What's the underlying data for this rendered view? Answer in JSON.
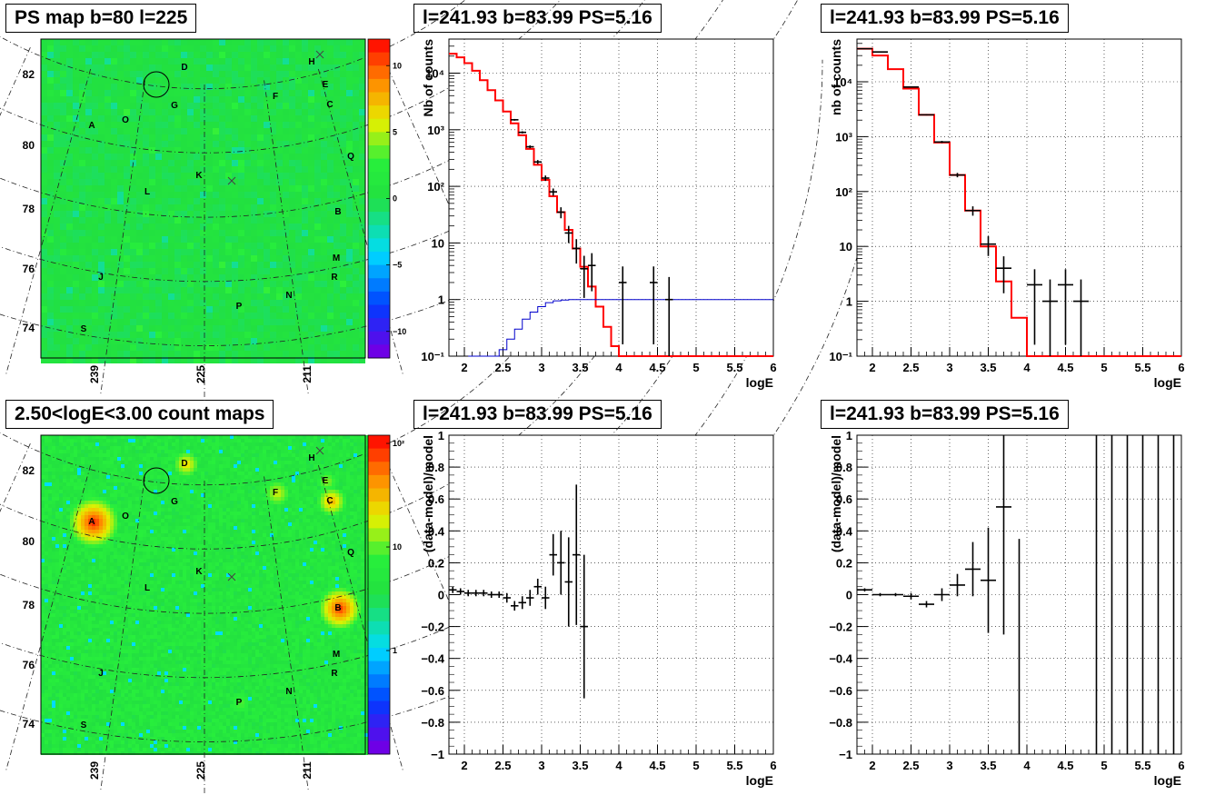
{
  "chart_data": [
    {
      "type": "heatmap",
      "title": "PS map b=80 l=225",
      "x_tick_labels": [
        "239",
        "225",
        "211"
      ],
      "y_tick_labels": [
        "82",
        "80",
        "78",
        "76",
        "74"
      ],
      "colorbar_ticks": [
        "10",
        "5",
        "0",
        "−5",
        "−10"
      ],
      "colorbar_range": [
        -12,
        12
      ],
      "sources": [
        "A",
        "B",
        "C",
        "D",
        "E",
        "F",
        "G",
        "H",
        "J",
        "K",
        "L",
        "M",
        "N",
        "O",
        "P",
        "Q",
        "R",
        "S"
      ],
      "colors": {
        "background": "#22e040",
        "high": "#ff2200",
        "low": "#6a00e0"
      }
    },
    {
      "type": "line",
      "title": "l=241.93 b=83.99 PS=5.16",
      "xlabel": "logE",
      "ylabel": "Nb of counts",
      "xlim": [
        1.8,
        6
      ],
      "ylim": [
        0.1,
        40000
      ],
      "log_y": true,
      "grid": true,
      "x_tick_labels": [
        "2",
        "2.5",
        "3",
        "3.5",
        "4",
        "4.5",
        "5",
        "5.5",
        "6"
      ],
      "y_tick_labels": [
        "10⁻¹",
        "1",
        "10",
        "10²",
        "10³",
        "10⁴"
      ],
      "series": [
        {
          "color": "#ff0000",
          "style": "step",
          "x": [
            1.8,
            1.9,
            2.0,
            2.1,
            2.2,
            2.3,
            2.4,
            2.5,
            2.6,
            2.7,
            2.8,
            2.9,
            3.0,
            3.1,
            3.2,
            3.3,
            3.4,
            3.5,
            3.6,
            3.7,
            3.8,
            3.9,
            4.0,
            4.1,
            4.2,
            4.3,
            4.4,
            4.5,
            4.6,
            4.7,
            4.8,
            4.9,
            5.0,
            5.1,
            5.2,
            5.3,
            5.4,
            5.5,
            5.6,
            5.7,
            5.8,
            5.9
          ],
          "values": [
            22000,
            19000,
            15000,
            11000,
            7500,
            5000,
            3300,
            2100,
            1300,
            800,
            460,
            240,
            130,
            67,
            35,
            17,
            8,
            3.8,
            1.7,
            0.75,
            0.33,
            0.15,
            0.1,
            0.1,
            0.1,
            0.1,
            0.1,
            0.1,
            0.1,
            0.1,
            0.1,
            0.1,
            0.1,
            0.1,
            0.1,
            0.1,
            0.1,
            0.1,
            0.1,
            0.1,
            0.1,
            0.1
          ]
        },
        {
          "color": "#0000cc",
          "style": "step",
          "x": [
            2.05,
            2.15,
            2.25,
            2.35,
            2.45,
            2.55,
            2.65,
            2.75,
            2.85,
            2.95,
            3.05,
            3.15,
            3.25,
            3.35,
            3.45,
            3.55,
            3.65,
            3.75,
            3.85,
            3.95,
            4.05,
            4.15,
            4.25,
            4.35,
            4.45,
            4.55,
            4.65,
            4.75,
            4.85,
            4.95,
            5.05,
            5.15,
            5.25,
            5.35,
            5.45,
            5.55,
            5.65,
            5.75,
            5.85,
            5.95
          ],
          "values": [
            0.1,
            0.1,
            0.1,
            0.1,
            0.13,
            0.2,
            0.3,
            0.45,
            0.6,
            0.75,
            0.88,
            0.95,
            0.98,
            1,
            1,
            1,
            1,
            1,
            1,
            1,
            1,
            1,
            1,
            1,
            1,
            1,
            1,
            1,
            1,
            1,
            1,
            1,
            1,
            1,
            1,
            1,
            1,
            1,
            1,
            1
          ]
        },
        {
          "color": "#000000",
          "style": "points",
          "x": [
            2.65,
            2.75,
            2.85,
            2.95,
            3.05,
            3.15,
            3.25,
            3.35,
            3.45,
            3.55,
            3.65,
            4.05,
            4.45,
            4.65
          ],
          "values": [
            1500,
            900,
            500,
            270,
            140,
            80,
            35,
            15,
            8,
            3.5,
            4,
            2,
            2,
            1
          ]
        }
      ]
    },
    {
      "type": "line",
      "title": "l=241.93 b=83.99 PS=5.16",
      "xlabel": "logE",
      "ylabel": "nb of counts",
      "xlim": [
        1.8,
        6
      ],
      "ylim": [
        0.1,
        60000
      ],
      "log_y": true,
      "grid": true,
      "x_tick_labels": [
        "2",
        "2.5",
        "3",
        "3.5",
        "4",
        "4.5",
        "5",
        "5.5",
        "6"
      ],
      "y_tick_labels": [
        "10⁻¹",
        "1",
        "10",
        "10²",
        "10³",
        "10⁴"
      ],
      "series": [
        {
          "color": "#ff0000",
          "style": "step",
          "x": [
            1.8,
            2.0,
            2.2,
            2.4,
            2.6,
            2.8,
            3.0,
            3.2,
            3.4,
            3.6,
            3.8,
            4.0,
            4.2,
            4.4,
            4.6,
            4.8,
            5.0,
            5.2,
            5.4,
            5.6,
            5.8
          ],
          "values": [
            40000,
            30000,
            17000,
            7500,
            2500,
            780,
            200,
            45,
            10,
            2.3,
            0.5,
            0.1,
            0.1,
            0.1,
            0.1,
            0.1,
            0.1,
            0.1,
            0.1,
            0.1,
            0.1
          ]
        },
        {
          "color": "#000000",
          "style": "points",
          "x": [
            1.9,
            2.1,
            2.5,
            2.7,
            2.9,
            3.1,
            3.3,
            3.5,
            3.7,
            4.1,
            4.3,
            4.5,
            4.7
          ],
          "values": [
            40000,
            35000,
            8000,
            2500,
            800,
            200,
            45,
            11,
            4,
            2,
            1,
            2,
            1
          ]
        }
      ]
    },
    {
      "type": "heatmap",
      "title": "2.50<logE<3.00 count maps",
      "x_tick_labels": [
        "239",
        "225",
        "211"
      ],
      "y_tick_labels": [
        "82",
        "80",
        "78",
        "76",
        "74"
      ],
      "colorbar_ticks": [
        "10²",
        "10",
        "1"
      ],
      "colorbar_range": [
        0.1,
        120
      ],
      "sources": [
        "A",
        "B",
        "C",
        "D",
        "E",
        "F",
        "G",
        "H",
        "J",
        "K",
        "L",
        "M",
        "N",
        "O",
        "P",
        "Q",
        "R",
        "S"
      ],
      "colors": {
        "background": "#22e040",
        "high": "#ff2200",
        "low": "#6a00e0"
      }
    },
    {
      "type": "scatter",
      "title": "l=241.93 b=83.99 PS=5.16",
      "xlabel": "logE",
      "ylabel": "(data-model)/model",
      "xlim": [
        1.8,
        6
      ],
      "ylim": [
        -1,
        1
      ],
      "grid": true,
      "x_tick_labels": [
        "2",
        "2.5",
        "3",
        "3.5",
        "4",
        "4.5",
        "5",
        "5.5",
        "6"
      ],
      "y_tick_labels": [
        "−1",
        "−0.8",
        "−0.6",
        "−0.4",
        "−0.2",
        "0",
        "0.2",
        "0.4",
        "0.6",
        "0.8",
        "1"
      ],
      "series": [
        {
          "color": "#000000",
          "x": [
            1.85,
            1.95,
            2.05,
            2.15,
            2.25,
            2.35,
            2.45,
            2.55,
            2.65,
            2.75,
            2.85,
            2.95,
            3.05,
            3.15,
            3.25,
            3.35,
            3.45,
            3.55
          ],
          "values": [
            0.03,
            0.02,
            0.01,
            0.01,
            0.01,
            0.0,
            0.0,
            -0.02,
            -0.07,
            -0.05,
            -0.02,
            0.05,
            -0.02,
            0.25,
            0.2,
            0.08,
            0.25,
            -0.2
          ],
          "errors": [
            0.02,
            0.02,
            0.02,
            0.02,
            0.02,
            0.02,
            0.02,
            0.03,
            0.03,
            0.04,
            0.05,
            0.05,
            0.07,
            0.13,
            0.2,
            0.28,
            0.44,
            0.45
          ]
        }
      ]
    },
    {
      "type": "scatter",
      "title": "l=241.93 b=83.99 PS=5.16",
      "xlabel": "logE",
      "ylabel": "(data-model)/model",
      "xlim": [
        1.8,
        6
      ],
      "ylim": [
        -1,
        1
      ],
      "grid": true,
      "x_tick_labels": [
        "2",
        "2.5",
        "3",
        "3.5",
        "4",
        "4.5",
        "5",
        "5.5",
        "6"
      ],
      "y_tick_labels": [
        "−1",
        "−0.8",
        "−0.6",
        "−0.4",
        "−0.2",
        "0",
        "0.2",
        "0.4",
        "0.6",
        "0.8",
        "1"
      ],
      "series": [
        {
          "color": "#000000",
          "x": [
            1.9,
            2.1,
            2.3,
            2.5,
            2.7,
            2.9,
            3.1,
            3.3,
            3.5,
            3.7,
            3.9,
            4.9,
            5.1,
            5.3,
            5.5,
            5.7,
            5.9
          ],
          "values": [
            0.03,
            0.0,
            0.0,
            -0.01,
            -0.06,
            0.0,
            0.06,
            0.16,
            0.09,
            0.55,
            -1.0,
            1,
            1,
            1,
            1,
            1,
            1
          ],
          "errors": [
            0.01,
            0.01,
            0.01,
            0.02,
            0.02,
            0.04,
            0.07,
            0.17,
            0.33,
            0.8,
            1.35,
            2,
            2,
            2,
            2,
            2,
            2
          ]
        }
      ]
    }
  ]
}
